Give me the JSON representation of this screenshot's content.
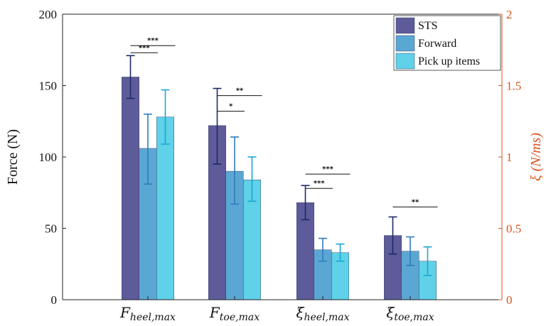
{
  "chart_data": {
    "type": "bar",
    "categories": [
      {
        "main": "F",
        "sub": "heel,max"
      },
      {
        "main": "F",
        "sub": "toe,max"
      },
      {
        "main": "ξ",
        "sub": "heel,max"
      },
      {
        "main": "ξ",
        "sub": "toe,max"
      }
    ],
    "series": [
      {
        "name": "STS",
        "color": "#5e5b9a",
        "err_color": "#1c2a66",
        "values": [
          156,
          122,
          68,
          45
        ],
        "err_low": [
          141,
          95,
          56,
          32
        ],
        "err_high": [
          171,
          148,
          80,
          58
        ]
      },
      {
        "name": "Forward",
        "color": "#5ba7d3",
        "err_color": "#2f7cbc",
        "values": [
          106,
          90,
          35,
          34
        ],
        "err_low": [
          81,
          67,
          27,
          24
        ],
        "err_high": [
          130,
          114,
          43,
          44
        ]
      },
      {
        "name": "Pick up items",
        "color": "#5fd1e8",
        "err_color": "#1aa7d6",
        "values": [
          128,
          84,
          33,
          27
        ],
        "err_low": [
          109,
          69,
          27,
          17
        ],
        "err_high": [
          147,
          100,
          39,
          37
        ]
      }
    ],
    "ylabel_left": "Force (N)",
    "ylabel_right": "ξ (N/ms)",
    "ylim_left": [
      0,
      200
    ],
    "ylim_right": [
      0,
      2
    ],
    "yticks_left": [
      "0",
      "50",
      "100",
      "150",
      "200"
    ],
    "yticks_right": [
      "0",
      "0.5",
      "1",
      "1.5",
      "2"
    ],
    "right_axis_color": "#d9541e",
    "grid": false,
    "legend_position": "top-right",
    "significance": [
      {
        "category": 0,
        "from": 0,
        "to": 1,
        "label": "***",
        "y": 173
      },
      {
        "category": 0,
        "from": 0,
        "to": 2,
        "label": "***",
        "y": 178
      },
      {
        "category": 1,
        "from": 0,
        "to": 1,
        "label": "*",
        "y": 132
      },
      {
        "category": 1,
        "from": 0,
        "to": 2,
        "label": "**",
        "y": 143
      },
      {
        "category": 2,
        "from": 0,
        "to": 1,
        "label": "***",
        "y": 78
      },
      {
        "category": 2,
        "from": 0,
        "to": 2,
        "label": "***",
        "y": 88
      },
      {
        "category": 3,
        "from": 0,
        "to": 2,
        "label": "**",
        "y": 65
      }
    ]
  }
}
